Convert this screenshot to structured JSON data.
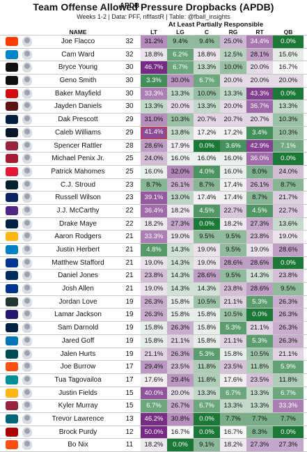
{
  "title": "Team Offense Allowed Pressure Dropbacks (APDB)",
  "subtitle": "Weeks 1-2 | Data: PFF, nflfastR | Table: @fball_insights",
  "group_header": "At Least Partially Responsible",
  "column_headers": {
    "name": "NAME",
    "apdb": "APDB",
    "lt": "LT",
    "lg": "LG",
    "c": "C",
    "rg": "RG",
    "rt": "RT",
    "qb": "QB"
  },
  "colors": {
    "high": "#762a83",
    "low": "#1b7837",
    "mid": "#f7f7f7",
    "highlight_border": "#d9342b"
  },
  "chart_data": {
    "type": "table",
    "columns": [
      "NAME",
      "APDB",
      "LT",
      "LG",
      "C",
      "RG",
      "RT",
      "QB"
    ],
    "rows": [
      {
        "team": "CLE",
        "logo_color": "#ff3c00",
        "name": "Joe Flacco",
        "apdb": "32",
        "lt": "31.2%",
        "lg": "9.4%",
        "c": "9.4%",
        "rg": "25.0%",
        "rt": "34.4%",
        "qb": "0.0%"
      },
      {
        "team": "CAR",
        "logo_color": "#0085ca",
        "name": "Cam Ward",
        "apdb": "32",
        "lt": "18.8%",
        "lg": "6.2%",
        "c": "18.8%",
        "rg": "12.5%",
        "rt": "28.1%",
        "qb": "15.6%"
      },
      {
        "team": "LV",
        "logo_color": "#101010",
        "name": "Bryce Young",
        "apdb": "30",
        "lt": "46.7%",
        "lg": "6.7%",
        "c": "13.3%",
        "rg": "10.0%",
        "rt": "20.0%",
        "qb": "16.7%"
      },
      {
        "team": "LV",
        "logo_color": "#101010",
        "name": "Geno Smith",
        "apdb": "30",
        "lt": "3.3%",
        "lg": "30.0%",
        "c": "6.7%",
        "rg": "20.0%",
        "rt": "20.0%",
        "qb": "20.0%"
      },
      {
        "team": "TB",
        "logo_color": "#d50a0a",
        "name": "Baker Mayfield",
        "apdb": "30",
        "lt": "33.3%",
        "lg": "13.3%",
        "c": "10.0%",
        "rg": "13.3%",
        "rt": "43.3%",
        "qb": "0.0%"
      },
      {
        "team": "WAS",
        "logo_color": "#5a1414",
        "name": "Jayden Daniels",
        "apdb": "30",
        "lt": "13.3%",
        "lg": "20.0%",
        "c": "13.3%",
        "rg": "20.0%",
        "rt": "36.7%",
        "qb": "13.3%"
      },
      {
        "team": "DAL",
        "logo_color": "#041e42",
        "name": "Dak Prescott",
        "apdb": "29",
        "lt": "31.0%",
        "lg": "10.3%",
        "c": "20.7%",
        "rg": "20.7%",
        "rt": "20.7%",
        "qb": "10.3%"
      },
      {
        "team": "CHI",
        "logo_color": "#0b162a",
        "name": "Caleb Williams",
        "apdb": "29",
        "lt": "41.4%",
        "lg": "13.8%",
        "c": "17.2%",
        "rg": "17.2%",
        "rt": "3.4%",
        "qb": "10.3%",
        "highlight": "lt"
      },
      {
        "team": "ARI",
        "logo_color": "#97233f",
        "name": "Spencer Rattler",
        "apdb": "28",
        "lt": "28.6%",
        "lg": "17.9%",
        "c": "0.0%",
        "rg": "3.6%",
        "rt": "42.9%",
        "qb": "7.1%"
      },
      {
        "team": "ATL",
        "logo_color": "#a71930",
        "name": "Michael Penix Jr.",
        "apdb": "25",
        "lt": "24.0%",
        "lg": "16.0%",
        "c": "16.0%",
        "rg": "16.0%",
        "rt": "36.0%",
        "qb": "0.0%"
      },
      {
        "team": "KC",
        "logo_color": "#e31837",
        "name": "Patrick Mahomes",
        "apdb": "25",
        "lt": "16.0%",
        "lg": "32.0%",
        "c": "4.0%",
        "rg": "16.0%",
        "rt": "8.0%",
        "qb": "24.0%"
      },
      {
        "team": "HOU",
        "logo_color": "#03202f",
        "name": "C.J. Stroud",
        "apdb": "23",
        "lt": "8.7%",
        "lg": "26.1%",
        "c": "8.7%",
        "rg": "17.4%",
        "rt": "26.1%",
        "qb": "8.7%"
      },
      {
        "team": "NYG",
        "logo_color": "#0b2265",
        "name": "Russell Wilson",
        "apdb": "23",
        "lt": "39.1%",
        "lg": "13.0%",
        "c": "17.4%",
        "rg": "17.4%",
        "rt": "8.7%",
        "qb": "21.7%"
      },
      {
        "team": "MIN",
        "logo_color": "#4f2683",
        "name": "J.J. McCarthy",
        "apdb": "22",
        "lt": "36.4%",
        "lg": "18.2%",
        "c": "4.5%",
        "rg": "22.7%",
        "rt": "4.5%",
        "qb": "22.7%"
      },
      {
        "team": "NE",
        "logo_color": "#002244",
        "name": "Drake Maye",
        "apdb": "22",
        "lt": "18.2%",
        "lg": "27.3%",
        "c": "0.0%",
        "rg": "18.2%",
        "rt": "27.3%",
        "qb": "13.6%"
      },
      {
        "team": "PIT",
        "logo_color": "#ffb612",
        "name": "Aaron Rodgers",
        "apdb": "21",
        "lt": "33.3%",
        "lg": "19.0%",
        "c": "9.5%",
        "rg": "9.5%",
        "rt": "23.8%",
        "qb": "19.0%"
      },
      {
        "team": "LAC",
        "logo_color": "#0080c6",
        "name": "Justin Herbert",
        "apdb": "21",
        "lt": "4.8%",
        "lg": "14.3%",
        "c": "19.0%",
        "rg": "9.5%",
        "rt": "19.0%",
        "qb": "28.6%"
      },
      {
        "team": "LAR",
        "logo_color": "#003594",
        "name": "Matthew Stafford",
        "apdb": "21",
        "lt": "19.0%",
        "lg": "14.3%",
        "c": "19.0%",
        "rg": "28.6%",
        "rt": "28.6%",
        "qb": "0.0%"
      },
      {
        "team": "IND",
        "logo_color": "#002c5f",
        "name": "Daniel Jones",
        "apdb": "21",
        "lt": "23.8%",
        "lg": "14.3%",
        "c": "28.6%",
        "rg": "9.5%",
        "rt": "14.3%",
        "qb": "23.8%"
      },
      {
        "team": "BUF",
        "logo_color": "#00338d",
        "name": "Josh Allen",
        "apdb": "21",
        "lt": "19.0%",
        "lg": "14.3%",
        "c": "14.3%",
        "rg": "23.8%",
        "rt": "28.6%",
        "qb": "9.5%"
      },
      {
        "team": "GB",
        "logo_color": "#203731",
        "name": "Jordan Love",
        "apdb": "19",
        "lt": "26.3%",
        "lg": "15.8%",
        "c": "10.5%",
        "rg": "21.1%",
        "rt": "5.3%",
        "qb": "26.3%"
      },
      {
        "team": "BAL",
        "logo_color": "#241773",
        "name": "Lamar Jackson",
        "apdb": "19",
        "lt": "26.3%",
        "lg": "15.8%",
        "c": "15.8%",
        "rg": "10.5%",
        "rt": "0.0%",
        "qb": "26.3%"
      },
      {
        "team": "SEA",
        "logo_color": "#002244",
        "name": "Sam Darnold",
        "apdb": "19",
        "lt": "15.8%",
        "lg": "26.3%",
        "c": "15.8%",
        "rg": "5.3%",
        "rt": "21.1%",
        "qb": "26.3%"
      },
      {
        "team": "DET",
        "logo_color": "#0076b6",
        "name": "Jared Goff",
        "apdb": "19",
        "lt": "15.8%",
        "lg": "21.1%",
        "c": "15.8%",
        "rg": "21.1%",
        "rt": "5.3%",
        "qb": "26.3%"
      },
      {
        "team": "PHI",
        "logo_color": "#004c54",
        "name": "Jalen Hurts",
        "apdb": "19",
        "lt": "21.1%",
        "lg": "26.3%",
        "c": "5.3%",
        "rg": "15.8%",
        "rt": "10.5%",
        "qb": "21.1%"
      },
      {
        "team": "CIN",
        "logo_color": "#fb4f14",
        "name": "Joe Burrow",
        "apdb": "17",
        "lt": "29.4%",
        "lg": "23.5%",
        "c": "11.8%",
        "rg": "23.5%",
        "rt": "11.8%",
        "qb": "5.9%"
      },
      {
        "team": "MIA",
        "logo_color": "#008e97",
        "name": "Tua Tagovailoa",
        "apdb": "17",
        "lt": "17.6%",
        "lg": "29.4%",
        "c": "11.8%",
        "rg": "17.6%",
        "rt": "23.5%",
        "qb": "11.8%"
      },
      {
        "team": "PIT",
        "logo_color": "#ffb612",
        "name": "Justin Fields",
        "apdb": "15",
        "lt": "40.0%",
        "lg": "20.0%",
        "c": "13.3%",
        "rg": "6.7%",
        "rt": "13.3%",
        "qb": "6.7%"
      },
      {
        "team": "ARI",
        "logo_color": "#97233f",
        "name": "Kyler Murray",
        "apdb": "15",
        "lt": "6.7%",
        "lg": "26.7%",
        "c": "6.7%",
        "rg": "13.3%",
        "rt": "13.3%",
        "qb": "33.3%"
      },
      {
        "team": "JAX",
        "logo_color": "#006778",
        "name": "Trevor Lawrence",
        "apdb": "13",
        "lt": "46.2%",
        "lg": "30.8%",
        "c": "0.0%",
        "rg": "7.7%",
        "rt": "7.7%",
        "qb": "7.7%"
      },
      {
        "team": "SF",
        "logo_color": "#aa0000",
        "name": "Brock Purdy",
        "apdb": "12",
        "lt": "50.0%",
        "lg": "16.7%",
        "c": "0.0%",
        "rg": "16.7%",
        "rt": "8.3%",
        "qb": "0.0%"
      },
      {
        "team": "DEN",
        "logo_color": "#fb4f14",
        "name": "Bo Nix",
        "apdb": "11",
        "lt": "18.2%",
        "lg": "0.0%",
        "c": "9.1%",
        "rg": "18.2%",
        "rt": "27.3%",
        "qb": "27.3%"
      }
    ]
  }
}
